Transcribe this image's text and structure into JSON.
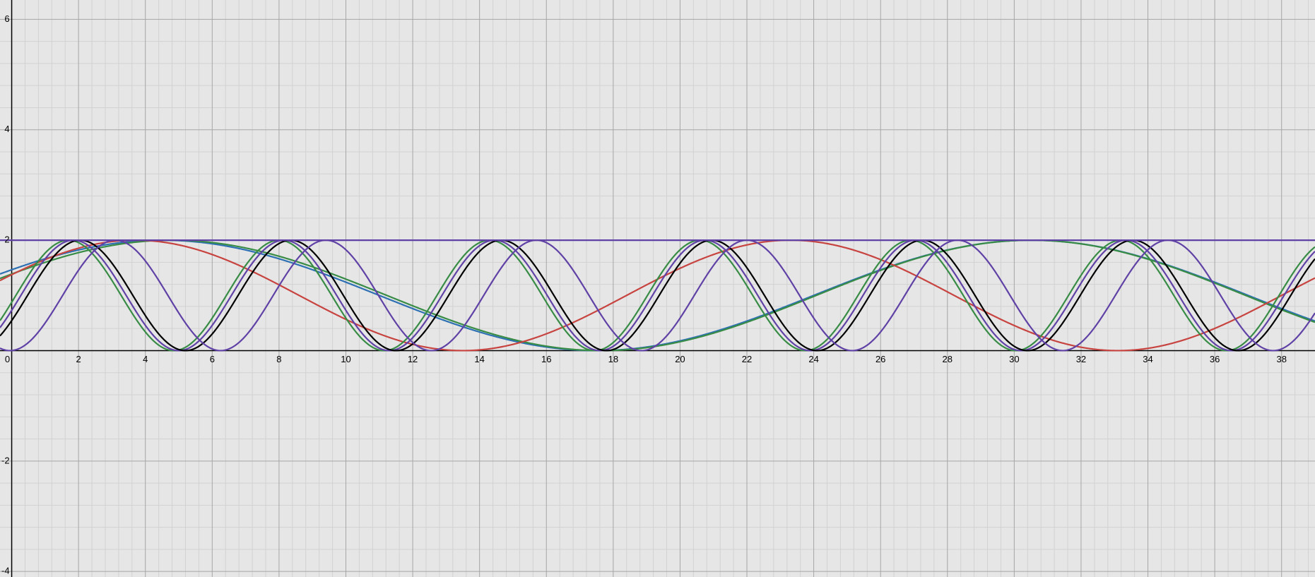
{
  "chart_data": {
    "type": "line",
    "title": "",
    "xlabel": "",
    "ylabel": "",
    "xlim": [
      -0.35,
      39.0
    ],
    "ylim": [
      -4.1,
      6.35
    ],
    "grid": true,
    "x_ticks": [
      "0",
      "2",
      "4",
      "6",
      "8",
      "10",
      "12",
      "14",
      "16",
      "18",
      "20",
      "22",
      "24",
      "26",
      "28",
      "30",
      "32",
      "34",
      "36",
      "38"
    ],
    "y_ticks": [
      "-4",
      "-2",
      "2",
      "4",
      "6"
    ],
    "series": [
      {
        "color": "#2d70b3",
        "function": "1 + cos(2*pi*(x - 30.5)/26)"
      },
      {
        "color": "#388c46",
        "function": "1 + cos(2*pi*(x - 30.5)/25.7)"
      },
      {
        "color": "#c74440",
        "function": "1 + cos(2*pi*(x - 23.3)/19.6)"
      },
      {
        "color": "#388c46",
        "function": "1 + cos(2*pi*(x - 1.7)/6.3)"
      },
      {
        "color": "#6042a6",
        "function": "1 + cos(2*pi*(x - 1.85)/6.3)"
      },
      {
        "color": "#000000",
        "function": "1 + cos(2*pi*(x - 2.05)/6.3)"
      },
      {
        "color": "#6042a6",
        "function": "1 + cos(2*pi*(x - 3.1)/6.3)"
      },
      {
        "color": "#6042a6",
        "function": "y = 2"
      }
    ]
  }
}
